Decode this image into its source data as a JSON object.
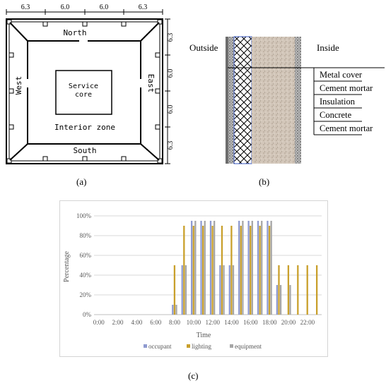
{
  "plan": {
    "dims_top": [
      "6.3",
      "6.0",
      "6.0",
      "6.3"
    ],
    "dims_right": [
      "6.3",
      "6.0",
      "6.0",
      "6.3"
    ],
    "north": "North",
    "south": "South",
    "west": "West",
    "east": "East",
    "core": [
      "Service",
      "core"
    ],
    "interior": "Interior zone",
    "caption": "(a)"
  },
  "wall": {
    "outside": "Outside",
    "inside": "Inside",
    "layers": [
      "Metal cover",
      "Cement mortar",
      "Insulation",
      "Concrete",
      "Cement mortar"
    ],
    "caption": "(b)"
  },
  "chart_data": {
    "type": "bar",
    "xlabel": "Time",
    "ylabel": "Percentage",
    "ylim": [
      0,
      100
    ],
    "y_ticks": [
      "0%",
      "20%",
      "40%",
      "60%",
      "80%",
      "100%"
    ],
    "categories": [
      "0:00",
      "1:00",
      "2:00",
      "3:00",
      "4:00",
      "5:00",
      "6:00",
      "7:00",
      "8:00",
      "9:00",
      "10:00",
      "11:00",
      "12:00",
      "13:00",
      "14:00",
      "15:00",
      "16:00",
      "17:00",
      "18:00",
      "19:00",
      "20:00",
      "21:00",
      "22:00",
      "23:00"
    ],
    "x_tick_labels": [
      "0:00",
      "2:00",
      "4:00",
      "6:00",
      "8:00",
      "10:00",
      "12:00",
      "14:00",
      "16:00",
      "18:00",
      "20:00",
      "22:00"
    ],
    "series": [
      {
        "name": "occupant",
        "color": "#8f9bd0",
        "values": [
          0,
          0,
          0,
          0,
          0,
          0,
          0,
          0,
          10,
          50,
          95,
          95,
          95,
          50,
          50,
          95,
          95,
          95,
          95,
          30,
          0,
          0,
          0,
          0
        ]
      },
      {
        "name": "lighting",
        "color": "#c9a02c",
        "values": [
          0,
          0,
          0,
          0,
          0,
          0,
          0,
          0,
          50,
          90,
          90,
          90,
          90,
          90,
          90,
          90,
          90,
          90,
          90,
          50,
          50,
          50,
          50,
          50
        ]
      },
      {
        "name": "equipment",
        "color": "#a6a6a6",
        "values": [
          0,
          0,
          0,
          0,
          0,
          0,
          0,
          0,
          10,
          50,
          95,
          95,
          95,
          50,
          50,
          95,
          95,
          95,
          95,
          30,
          30,
          0,
          0,
          0
        ]
      }
    ],
    "legend_position": "bottom",
    "caption": "(c)"
  }
}
